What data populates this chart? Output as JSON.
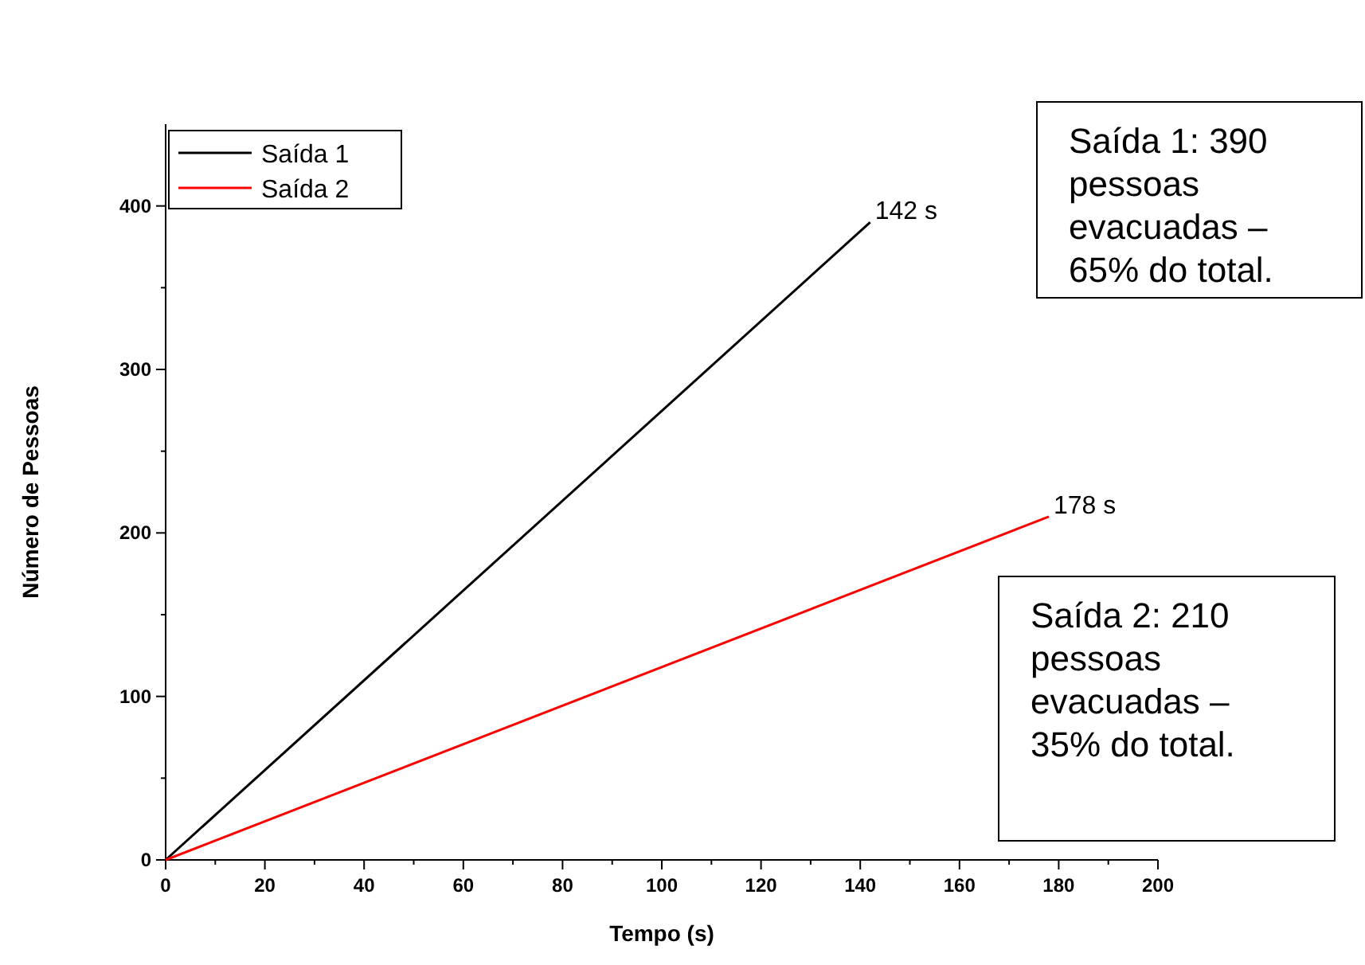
{
  "chart_data": {
    "type": "line",
    "xlabel": "Tempo (s)",
    "ylabel": "Número de Pessoas",
    "xlim": [
      0,
      200
    ],
    "ylim": [
      0,
      450
    ],
    "xticks": [
      0,
      {
        "value": 10,
        "label": null
      },
      20,
      {
        "value": 30,
        "label": null
      },
      40,
      {
        "value": 50,
        "label": null
      },
      60,
      {
        "value": 70,
        "label": null
      },
      80,
      {
        "value": 90,
        "label": null
      },
      100,
      {
        "value": 110,
        "label": null
      },
      120,
      {
        "value": 130,
        "label": null
      },
      140,
      {
        "value": 150,
        "label": null
      },
      160,
      {
        "value": 170,
        "label": null
      },
      180,
      {
        "value": 190,
        "label": null
      },
      200
    ],
    "yticks": [
      0,
      {
        "value": 50,
        "label": null
      },
      100,
      {
        "value": 150,
        "label": null
      },
      200,
      {
        "value": 250,
        "label": null
      },
      300,
      {
        "value": 350,
        "label": null
      },
      400
    ],
    "series": [
      {
        "name": "Saída 1",
        "color": "#000000",
        "x": [
          0,
          142
        ],
        "values": [
          0,
          390
        ]
      },
      {
        "name": "Saída 2",
        "color": "#ff0000",
        "x": [
          0,
          178
        ],
        "values": [
          0,
          210
        ]
      }
    ],
    "annotations": [
      {
        "text": "142 s",
        "x": 142,
        "y": 390
      },
      {
        "text": "178 s",
        "x": 178,
        "y": 210
      },
      "Saída 1: 390 pessoas evacuadas – 65% do total.",
      "Saída 2: 210 pessoas evacuadas – 35% do total."
    ],
    "legend": "top left",
    "grid": false,
    "marker": "none",
    "line_style": "solid"
  }
}
